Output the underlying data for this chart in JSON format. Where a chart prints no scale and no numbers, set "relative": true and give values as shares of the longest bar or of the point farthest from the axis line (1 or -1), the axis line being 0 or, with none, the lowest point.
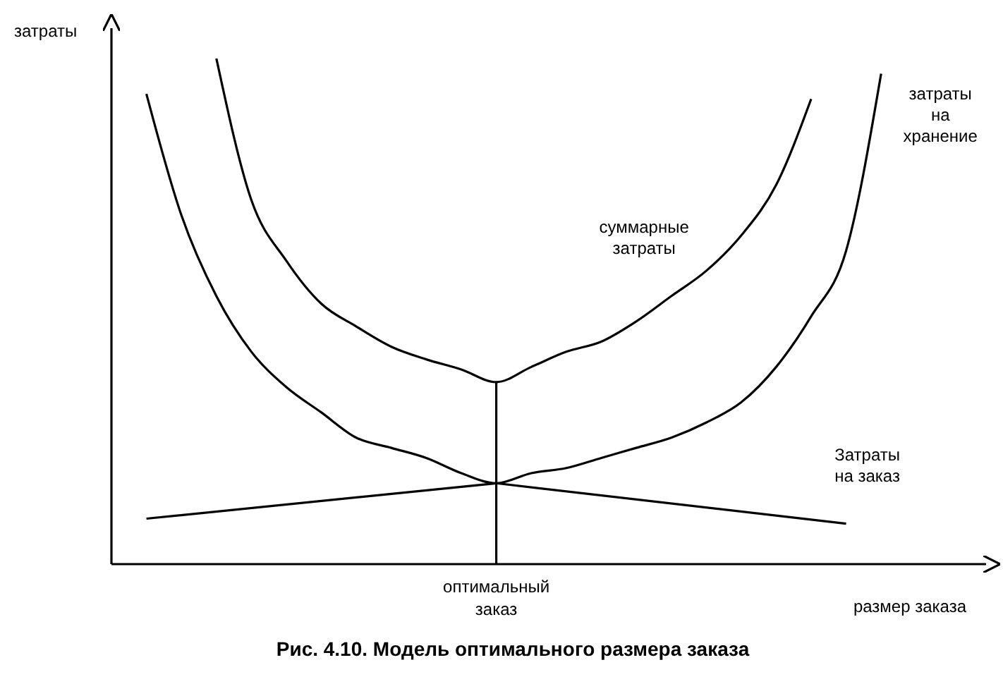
{
  "chart_data": {
    "type": "line",
    "title": "Рис. 4.10. Модель оптимального размера заказа",
    "xlabel": "размер заказа",
    "ylabel": "затраты",
    "relative": true,
    "categories": [
      null,
      null,
      null,
      null,
      null,
      null,
      null,
      null,
      null,
      null,
      null,
      null,
      null,
      null,
      null,
      null,
      null,
      null,
      null,
      null,
      null,
      null,
      null,
      null,
      null
    ],
    "series": [
      {
        "name": "суммарные затраты",
        "color": "#000000",
        "values": [
          null,
          null,
          null,
          1.0,
          0.72,
          0.6,
          0.515,
          0.47,
          0.43,
          0.405,
          0.385,
          0.36,
          0.39,
          0.42,
          0.44,
          0.48,
          0.53,
          0.58,
          0.65,
          0.75,
          0.92,
          null,
          null,
          null,
          null
        ]
      },
      {
        "name": "затраты на хранение",
        "color": "#000000",
        "values": [
          null,
          0.93,
          0.69,
          0.53,
          0.42,
          0.35,
          0.3,
          0.25,
          0.23,
          0.21,
          0.18,
          0.16,
          0.18,
          0.19,
          0.21,
          0.23,
          0.25,
          0.28,
          0.32,
          0.39,
          0.49,
          0.62,
          0.97,
          null,
          null
        ]
      },
      {
        "name": "Затраты на заказ",
        "color": "#000000",
        "values": [
          null,
          0.09,
          null,
          null,
          null,
          null,
          null,
          null,
          null,
          null,
          null,
          0.16,
          null,
          null,
          null,
          null,
          null,
          null,
          null,
          null,
          null,
          0.08,
          null,
          null,
          null
        ]
      }
    ],
    "ref_lines": [
      {
        "axis": "x",
        "label": "оптимальный заказ",
        "color": "#000000"
      }
    ],
    "marker": "none",
    "grid": false,
    "legend": false
  }
}
